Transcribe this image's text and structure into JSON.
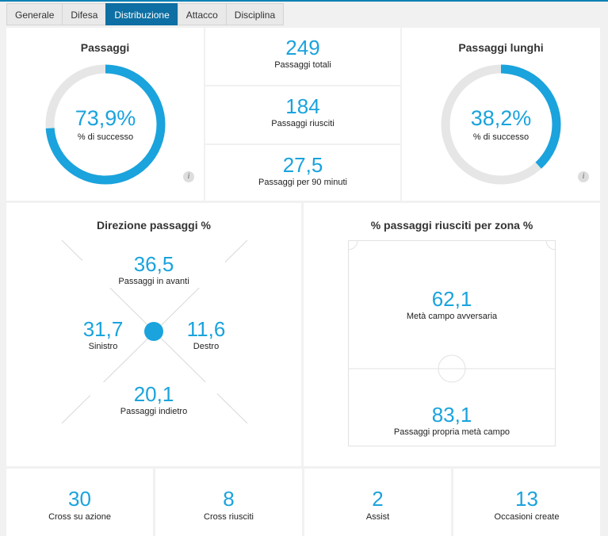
{
  "tabs": [
    {
      "label": "Generale",
      "active": false
    },
    {
      "label": "Difesa",
      "active": false
    },
    {
      "label": "Distribuzione",
      "active": true
    },
    {
      "label": "Attacco",
      "active": false
    },
    {
      "label": "Disciplina",
      "active": false
    }
  ],
  "passes": {
    "title": "Passaggi",
    "value": "73,9%",
    "label": "% di successo",
    "fraction": 0.739
  },
  "long_passes": {
    "title": "Passaggi lunghi",
    "value": "38,2%",
    "label": "% di successo",
    "fraction": 0.382
  },
  "totals": [
    {
      "value": "249",
      "label": "Passaggi totali"
    },
    {
      "value": "184",
      "label": "Passaggi riusciti"
    },
    {
      "value": "27,5",
      "label": "Passaggi per 90 minuti"
    }
  ],
  "direction": {
    "title": "Direzione passaggi %",
    "forward": {
      "value": "36,5",
      "label": "Passaggi in avanti"
    },
    "left": {
      "value": "31,7",
      "label": "Sinistro"
    },
    "right": {
      "value": "11,6",
      "label": "Destro"
    },
    "back": {
      "value": "20,1",
      "label": "Passaggi indietro"
    }
  },
  "zones": {
    "title": "% passaggi riusciti per zona %",
    "opponent_half": {
      "value": "62,1",
      "label": "Metà campo avversaria"
    },
    "own_half": {
      "value": "83,1",
      "label": "Passaggi propria metà campo"
    }
  },
  "bottom": [
    {
      "value": "30",
      "label": "Cross su azione"
    },
    {
      "value": "8",
      "label": "Cross riusciti"
    },
    {
      "value": "2",
      "label": "Assist"
    },
    {
      "value": "13",
      "label": "Occasioni create"
    }
  ],
  "info_icon": "info-icon",
  "colors": {
    "accent": "#1aa3dd",
    "track": "#e6e6e6",
    "active_tab": "#0d6fa3"
  }
}
